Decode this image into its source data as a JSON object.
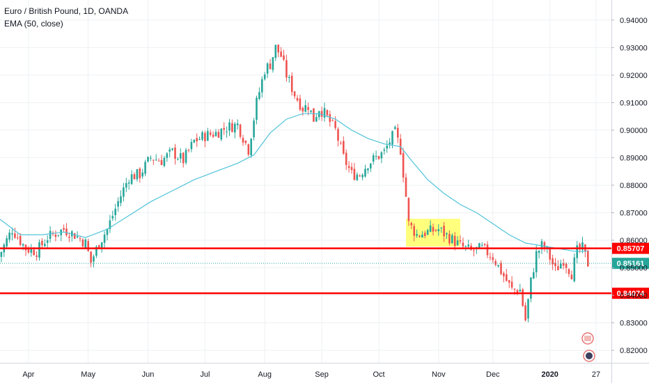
{
  "header": {
    "title": "Euro / British Pound, 1D, OANDA",
    "indicator": "EMA (50, close)"
  },
  "colors": {
    "up": "#26a69a",
    "down": "#ef5350",
    "ema": "#4fc3d9",
    "level": "#ff0000",
    "current": "#26a69a",
    "highlight": "#ffff66",
    "grid": "#eef0f3"
  },
  "chart_data": {
    "type": "candlestick",
    "instrument": "Euro / British Pound",
    "interval": "1D",
    "source": "OANDA",
    "ylim": [
      0.8175,
      0.9435
    ],
    "y_ticks": [
      0.82,
      0.83,
      0.84,
      0.85,
      0.86,
      0.87,
      0.88,
      0.89,
      0.9,
      0.91,
      0.92,
      0.93,
      0.94
    ],
    "y_tick_labels": [
      "0.82000",
      "0.83000",
      "0.84000",
      "0.85000",
      "0.86000",
      "0.87000",
      "0.88000",
      "0.89000",
      "0.90000",
      "0.91000",
      "0.92000",
      "0.93000",
      "0.94000"
    ],
    "x_ticks": [
      "Apr",
      "May",
      "Jun",
      "Jul",
      "Aug",
      "Sep",
      "Oct",
      "Nov",
      "Dec",
      "2020",
      "27"
    ],
    "x_tick_day_index": [
      11,
      33,
      55,
      76,
      98,
      119,
      140,
      162,
      182,
      203,
      220
    ],
    "close_path": [
      [
        0,
        0.854
      ],
      [
        5,
        0.864
      ],
      [
        10,
        0.857
      ],
      [
        14,
        0.856
      ],
      [
        18,
        0.861
      ],
      [
        24,
        0.864
      ],
      [
        28,
        0.862
      ],
      [
        32,
        0.859
      ],
      [
        34,
        0.852
      ],
      [
        37,
        0.859
      ],
      [
        40,
        0.864
      ],
      [
        44,
        0.874
      ],
      [
        48,
        0.883
      ],
      [
        52,
        0.884
      ],
      [
        56,
        0.89
      ],
      [
        60,
        0.889
      ],
      [
        64,
        0.892
      ],
      [
        68,
        0.889
      ],
      [
        72,
        0.896
      ],
      [
        76,
        0.898
      ],
      [
        80,
        0.899
      ],
      [
        84,
        0.901
      ],
      [
        88,
        0.902
      ],
      [
        92,
        0.893
      ],
      [
        95,
        0.91
      ],
      [
        98,
        0.922
      ],
      [
        100,
        0.924
      ],
      [
        102,
        0.93
      ],
      [
        104,
        0.927
      ],
      [
        106,
        0.92
      ],
      [
        109,
        0.913
      ],
      [
        112,
        0.908
      ],
      [
        114,
        0.909
      ],
      [
        116,
        0.904
      ],
      [
        118,
        0.908
      ],
      [
        120,
        0.906
      ],
      [
        124,
        0.9
      ],
      [
        127,
        0.89
      ],
      [
        130,
        0.884
      ],
      [
        133,
        0.884
      ],
      [
        136,
        0.888
      ],
      [
        139,
        0.89
      ],
      [
        142,
        0.892
      ],
      [
        144,
        0.896
      ],
      [
        146,
        0.899
      ],
      [
        148,
        0.893
      ],
      [
        150,
        0.876
      ],
      [
        151,
        0.866
      ],
      [
        154,
        0.862
      ],
      [
        158,
        0.863
      ],
      [
        162,
        0.864
      ],
      [
        166,
        0.861
      ],
      [
        170,
        0.858
      ],
      [
        174,
        0.856
      ],
      [
        178,
        0.857
      ],
      [
        182,
        0.854
      ],
      [
        186,
        0.847
      ],
      [
        189,
        0.842
      ],
      [
        192,
        0.842
      ],
      [
        194,
        0.831
      ],
      [
        196,
        0.845
      ],
      [
        198,
        0.855
      ],
      [
        200,
        0.858
      ],
      [
        202,
        0.856
      ],
      [
        205,
        0.849
      ],
      [
        208,
        0.853
      ],
      [
        211,
        0.848
      ],
      [
        213,
        0.856
      ],
      [
        215,
        0.857
      ],
      [
        217,
        0.8516
      ]
    ],
    "ema_path": [
      [
        0,
        0.868
      ],
      [
        8,
        0.862
      ],
      [
        16,
        0.862
      ],
      [
        24,
        0.863
      ],
      [
        32,
        0.861
      ],
      [
        40,
        0.864
      ],
      [
        48,
        0.869
      ],
      [
        56,
        0.874
      ],
      [
        64,
        0.878
      ],
      [
        72,
        0.882
      ],
      [
        80,
        0.885
      ],
      [
        88,
        0.888
      ],
      [
        94,
        0.891
      ],
      [
        100,
        0.899
      ],
      [
        106,
        0.904
      ],
      [
        112,
        0.906
      ],
      [
        118,
        0.906
      ],
      [
        124,
        0.904
      ],
      [
        130,
        0.9
      ],
      [
        136,
        0.897
      ],
      [
        142,
        0.895
      ],
      [
        148,
        0.894
      ],
      [
        152,
        0.889
      ],
      [
        158,
        0.882
      ],
      [
        164,
        0.877
      ],
      [
        170,
        0.873
      ],
      [
        176,
        0.87
      ],
      [
        182,
        0.866
      ],
      [
        188,
        0.862
      ],
      [
        194,
        0.859
      ],
      [
        200,
        0.858
      ],
      [
        206,
        0.857
      ],
      [
        212,
        0.856
      ],
      [
        217,
        0.856
      ]
    ],
    "levels": [
      {
        "value": 0.85707,
        "label": "0.85707"
      },
      {
        "value": 0.84074,
        "label": "0.84074"
      }
    ],
    "current_price": {
      "value": 0.85161,
      "label": "0.85161"
    },
    "highlight_zone": {
      "day_from": 150,
      "day_to": 170,
      "price_low": 0.8577,
      "price_high": 0.8678
    },
    "indicator": {
      "name": "EMA",
      "period": 50,
      "source": "close"
    }
  }
}
